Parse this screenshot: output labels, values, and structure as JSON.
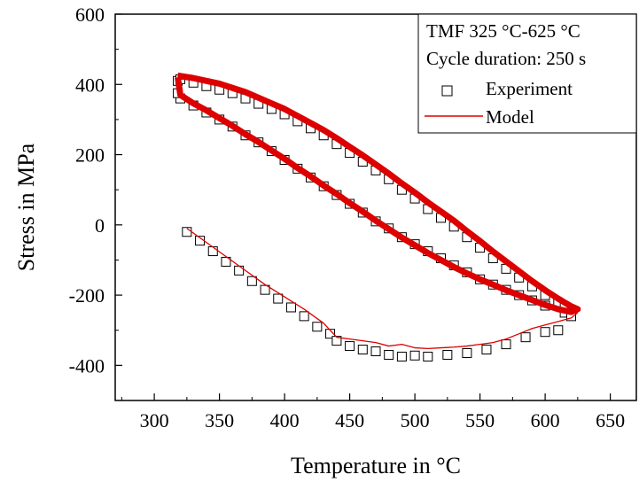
{
  "chart_data": {
    "type": "scatter",
    "xlabel": "Temperature in °C",
    "ylabel": "Stress in MPa",
    "xlim": [
      270,
      670
    ],
    "ylim": [
      -500,
      600
    ],
    "x_ticks": [
      300,
      350,
      400,
      450,
      500,
      550,
      600,
      650
    ],
    "x_tick_labels": [
      "300",
      "350",
      "400",
      "450",
      "500",
      "550",
      "600",
      "650"
    ],
    "y_ticks": [
      -400,
      -200,
      0,
      200,
      400,
      600
    ],
    "y_tick_labels": [
      "-400",
      "-200",
      "0",
      "200",
      "400",
      "600"
    ],
    "grid": false,
    "legend_placement": "top-right",
    "legend": {
      "title_lines": [
        "TMF 325 °C-625 °C",
        "Cycle duration: 250 s"
      ],
      "entries": [
        {
          "name": "Experiment",
          "marker": "open-square",
          "color": "#000000"
        },
        {
          "name": "Model",
          "marker": "line",
          "color": "#dd0000"
        }
      ]
    },
    "series": [
      {
        "name": "Experiment",
        "kind": "stabilized-loop-upper",
        "x": [
          318,
          320,
          330,
          340,
          350,
          360,
          370,
          380,
          390,
          400,
          410,
          420,
          430,
          440,
          450,
          460,
          470,
          480,
          490,
          500,
          510,
          520,
          530,
          540,
          550,
          560,
          570,
          580,
          590,
          600,
          610,
          615
        ],
        "y": [
          410,
          415,
          405,
          395,
          385,
          375,
          360,
          345,
          330,
          315,
          295,
          275,
          255,
          230,
          205,
          180,
          155,
          130,
          100,
          75,
          45,
          20,
          -5,
          -35,
          -65,
          -95,
          -125,
          -150,
          -175,
          -200,
          -225,
          -235
        ]
      },
      {
        "name": "Experiment",
        "kind": "stabilized-loop-lower",
        "x": [
          615,
          600,
          590,
          580,
          570,
          560,
          550,
          540,
          530,
          520,
          510,
          500,
          490,
          480,
          470,
          460,
          450,
          440,
          430,
          420,
          410,
          400,
          390,
          380,
          370,
          360,
          350,
          340,
          330,
          320,
          318
        ],
        "y": [
          -250,
          -230,
          -215,
          -200,
          -185,
          -170,
          -155,
          -135,
          -115,
          -95,
          -75,
          -55,
          -35,
          -10,
          10,
          35,
          60,
          85,
          110,
          135,
          160,
          185,
          210,
          235,
          255,
          280,
          300,
          320,
          340,
          360,
          375
        ]
      },
      {
        "name": "Experiment",
        "kind": "first-cycle",
        "x": [
          325,
          335,
          345,
          355,
          365,
          375,
          385,
          395,
          405,
          415,
          425,
          435,
          440,
          450,
          460,
          470,
          480,
          490,
          500,
          510,
          525,
          540,
          555,
          570,
          585,
          600,
          610,
          620
        ],
        "y": [
          -20,
          -45,
          -75,
          -105,
          -130,
          -160,
          -185,
          -210,
          -235,
          -260,
          -290,
          -310,
          -330,
          -345,
          -355,
          -360,
          -370,
          -375,
          -372,
          -375,
          -370,
          -365,
          -355,
          -340,
          -320,
          -305,
          -300,
          -260
        ]
      },
      {
        "name": "Model",
        "kind": "stabilized-loop",
        "x": [
          318,
          330,
          340,
          350,
          360,
          370,
          380,
          390,
          400,
          410,
          420,
          430,
          440,
          450,
          460,
          470,
          480,
          490,
          500,
          510,
          520,
          530,
          540,
          550,
          560,
          570,
          580,
          590,
          600,
          610,
          620,
          625,
          620,
          610,
          600,
          590,
          580,
          570,
          560,
          550,
          540,
          530,
          520,
          510,
          500,
          490,
          480,
          470,
          460,
          450,
          440,
          430,
          420,
          410,
          400,
          390,
          380,
          370,
          360,
          350,
          340,
          330,
          320,
          318
        ],
        "y": [
          425,
          418,
          410,
          402,
          390,
          378,
          362,
          346,
          330,
          310,
          290,
          270,
          247,
          222,
          198,
          172,
          146,
          118,
          92,
          64,
          38,
          12,
          -18,
          -46,
          -76,
          -104,
          -132,
          -160,
          -186,
          -210,
          -232,
          -240,
          -248,
          -240,
          -228,
          -214,
          -200,
          -186,
          -170,
          -155,
          -138,
          -120,
          -100,
          -80,
          -58,
          -36,
          -12,
          12,
          38,
          62,
          88,
          112,
          138,
          162,
          188,
          212,
          236,
          258,
          282,
          304,
          326,
          346,
          370,
          420
        ]
      },
      {
        "name": "Model",
        "kind": "first-cycle",
        "x": [
          325,
          340,
          355,
          370,
          385,
          400,
          415,
          430,
          440,
          450,
          460,
          470,
          480,
          490,
          500,
          510,
          520,
          530,
          540,
          550,
          560,
          570,
          580,
          590,
          600,
          610,
          620,
          625
        ],
        "y": [
          -10,
          -50,
          -90,
          -130,
          -170,
          -205,
          -240,
          -280,
          -320,
          -325,
          -330,
          -335,
          -345,
          -340,
          -350,
          -352,
          -350,
          -348,
          -345,
          -340,
          -335,
          -325,
          -310,
          -295,
          -285,
          -275,
          -265,
          -250
        ]
      }
    ]
  }
}
